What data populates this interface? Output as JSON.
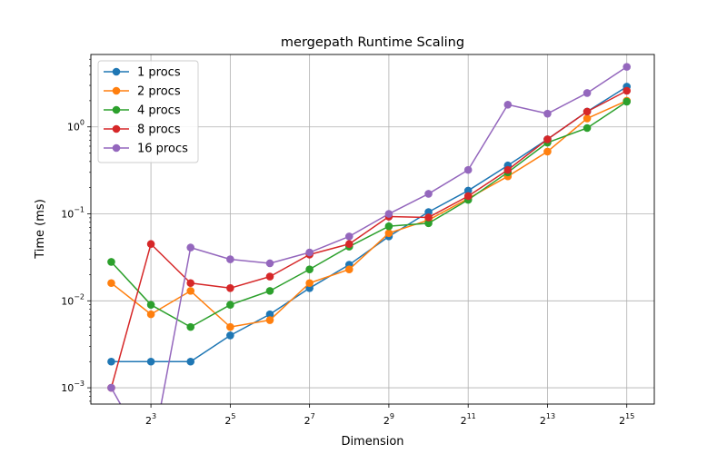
{
  "chart_data": {
    "type": "line",
    "title": "mergepath Runtime Scaling",
    "xlabel": "Dimension",
    "ylabel": "Time (ms)",
    "x_scale": "log2",
    "y_scale": "log10",
    "x": [
      4,
      8,
      16,
      32,
      64,
      128,
      256,
      512,
      1024,
      2048,
      4096,
      8192,
      16384,
      32768
    ],
    "x_ticks": [
      {
        "value": 8,
        "base": "2",
        "exp": "3"
      },
      {
        "value": 32,
        "base": "2",
        "exp": "5"
      },
      {
        "value": 128,
        "base": "2",
        "exp": "7"
      },
      {
        "value": 512,
        "base": "2",
        "exp": "9"
      },
      {
        "value": 2048,
        "base": "2",
        "exp": "11"
      },
      {
        "value": 8192,
        "base": "2",
        "exp": "13"
      },
      {
        "value": 32768,
        "base": "2",
        "exp": "15"
      }
    ],
    "y_ticks": [
      {
        "value": 0.001,
        "base": "10",
        "exp": "−3"
      },
      {
        "value": 0.01,
        "base": "10",
        "exp": "−2"
      },
      {
        "value": 0.1,
        "base": "10",
        "exp": "−1"
      },
      {
        "value": 1,
        "base": "10",
        "exp": "0"
      }
    ],
    "xlim": [
      2.8,
      53000
    ],
    "ylim": [
      0.00065,
      6.8
    ],
    "grid": true,
    "legend_position": "top-left",
    "series": [
      {
        "name": "1 procs",
        "color": "#1f77b4",
        "values": [
          0.002,
          0.002,
          0.002,
          0.004,
          0.007,
          0.014,
          0.026,
          0.055,
          0.105,
          0.185,
          0.36,
          0.72,
          1.5,
          2.9
        ]
      },
      {
        "name": "2 procs",
        "color": "#ff7f0e",
        "values": [
          0.016,
          0.007,
          0.013,
          0.005,
          0.006,
          0.016,
          0.023,
          0.06,
          0.085,
          0.15,
          0.27,
          0.52,
          1.25,
          2.0
        ]
      },
      {
        "name": "4 procs",
        "color": "#2ca02c",
        "values": [
          0.028,
          0.009,
          0.005,
          0.009,
          0.013,
          0.023,
          0.042,
          0.072,
          0.078,
          0.145,
          0.3,
          0.66,
          0.97,
          1.95
        ]
      },
      {
        "name": "8 procs",
        "color": "#d62728",
        "values": [
          0.001,
          0.045,
          0.016,
          0.014,
          0.019,
          0.034,
          0.045,
          0.093,
          0.091,
          0.16,
          0.32,
          0.72,
          1.5,
          2.6
        ]
      },
      {
        "name": "16 procs",
        "color": "#9467bd",
        "values": [
          0.001,
          0.0,
          0.041,
          0.03,
          0.027,
          0.036,
          0.055,
          0.1,
          0.17,
          0.32,
          1.8,
          1.42,
          2.45,
          4.9
        ]
      }
    ]
  }
}
